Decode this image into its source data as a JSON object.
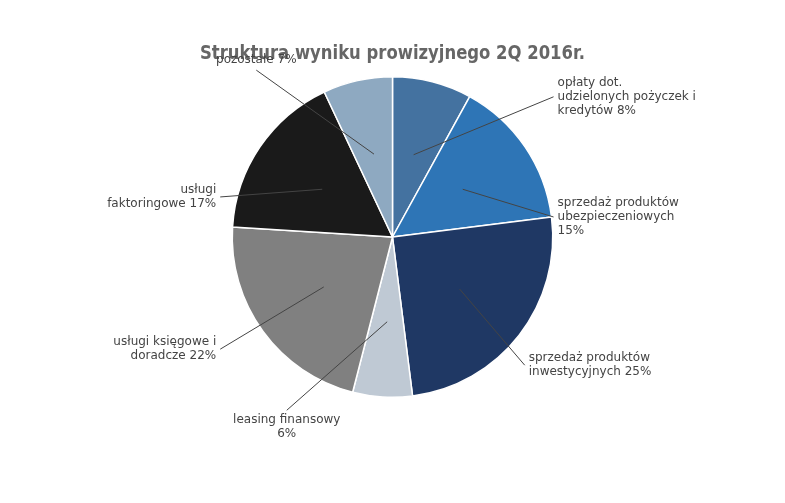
{
  "chart_data": {
    "type": "pie",
    "title": "Struktura wyniku prowizyjnego 2Q 2016r.",
    "categories": [
      "opłaty dot.\nudzielonych pożyczek i\nkredytów 8%",
      "sprzedaż produktów\nubezpieczeniowych\n15%",
      "sprzedaż produktów\ninwestycyjnych 25%",
      "leasing finansowy\n6%",
      "usługi księgowe i\ndoradcze 22%",
      "usługi\nfaktoringowe 17%",
      "pozostałe 7%"
    ],
    "values": [
      8,
      15,
      25,
      6,
      22,
      17,
      7
    ],
    "colors": [
      "#4472A0",
      "#2E75B6",
      "#1F3864",
      "#BFC9D4",
      "#808080",
      "#1A1A1A",
      "#8EA9C1"
    ]
  }
}
